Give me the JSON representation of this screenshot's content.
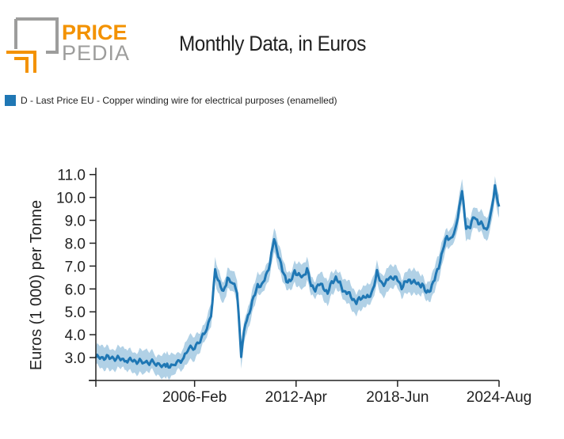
{
  "brand": {
    "line1": "PRICE",
    "line2": "PEDIA",
    "accent": "#f39200",
    "gray": "#9d9d9c"
  },
  "chart_data": {
    "type": "area",
    "title": "Monthly Data, in Euros",
    "xlabel": "",
    "ylabel": "Euros (1 000) per Tonne",
    "legend": {
      "position": "top-left",
      "entries": [
        "D - Last Price EU - Copper winding wire for electrical purposes (enamelled)"
      ]
    },
    "grid": false,
    "x_range": [
      "2000-Feb",
      "2024-Aug"
    ],
    "ylim": [
      2.0,
      11.3
    ],
    "xticks": [
      "2006-Feb",
      "2012-Apr",
      "2018-Jun",
      "2024-Aug"
    ],
    "yticks": [
      "3.0",
      "4.0",
      "5.0",
      "6.0",
      "7.0",
      "8.0",
      "9.0",
      "10.0",
      "11.0"
    ],
    "colors": {
      "line": "#1f77b4",
      "band": "#a9cce3"
    },
    "series": [
      {
        "name": "D - Last Price EU - Copper winding wire for electrical purposes (enamelled)",
        "points": [
          [
            "2000-02",
            3.0
          ],
          [
            "2001-01",
            3.0
          ],
          [
            "2002-01",
            2.9
          ],
          [
            "2003-01",
            2.8
          ],
          [
            "2003-09",
            2.8
          ],
          [
            "2004-01",
            2.6
          ],
          [
            "2004-06",
            2.7
          ],
          [
            "2004-10",
            2.6
          ],
          [
            "2005-02",
            2.8
          ],
          [
            "2005-06",
            3.0
          ],
          [
            "2005-10",
            3.4
          ],
          [
            "2006-02",
            3.5
          ],
          [
            "2006-06",
            3.7
          ],
          [
            "2006-10",
            4.2
          ],
          [
            "2007-02",
            4.8
          ],
          [
            "2007-05",
            6.8
          ],
          [
            "2007-08",
            6.3
          ],
          [
            "2007-11",
            5.8
          ],
          [
            "2008-02",
            6.5
          ],
          [
            "2008-06",
            6.2
          ],
          [
            "2008-09",
            5.9
          ],
          [
            "2008-12",
            3.1
          ],
          [
            "2009-03",
            4.5
          ],
          [
            "2009-06",
            5.0
          ],
          [
            "2009-09",
            5.6
          ],
          [
            "2009-12",
            6.2
          ],
          [
            "2010-03",
            6.1
          ],
          [
            "2010-06",
            6.6
          ],
          [
            "2010-09",
            7.1
          ],
          [
            "2010-12",
            8.2
          ],
          [
            "2011-03",
            7.5
          ],
          [
            "2011-06",
            6.8
          ],
          [
            "2011-09",
            6.4
          ],
          [
            "2011-12",
            6.3
          ],
          [
            "2012-03",
            6.8
          ],
          [
            "2012-06",
            6.6
          ],
          [
            "2012-09",
            6.5
          ],
          [
            "2012-12",
            6.9
          ],
          [
            "2013-03",
            6.1
          ],
          [
            "2013-06",
            6.0
          ],
          [
            "2013-09",
            6.2
          ],
          [
            "2013-12",
            6.1
          ],
          [
            "2014-03",
            5.8
          ],
          [
            "2014-06",
            6.3
          ],
          [
            "2014-09",
            6.5
          ],
          [
            "2014-12",
            6.2
          ],
          [
            "2015-03",
            5.9
          ],
          [
            "2015-06",
            5.8
          ],
          [
            "2015-09",
            5.6
          ],
          [
            "2015-12",
            5.4
          ],
          [
            "2016-03",
            5.6
          ],
          [
            "2016-06",
            5.7
          ],
          [
            "2016-09",
            5.6
          ],
          [
            "2016-12",
            6.0
          ],
          [
            "2017-03",
            6.7
          ],
          [
            "2017-06",
            6.3
          ],
          [
            "2017-09",
            6.2
          ],
          [
            "2017-12",
            6.5
          ],
          [
            "2018-03",
            6.5
          ],
          [
            "2018-06",
            6.4
          ],
          [
            "2018-09",
            6.1
          ],
          [
            "2018-12",
            6.3
          ],
          [
            "2019-03",
            6.4
          ],
          [
            "2019-06",
            6.3
          ],
          [
            "2019-09",
            6.2
          ],
          [
            "2019-12",
            6.2
          ],
          [
            "2020-03",
            5.8
          ],
          [
            "2020-06",
            6.0
          ],
          [
            "2020-09",
            6.4
          ],
          [
            "2020-12",
            7.0
          ],
          [
            "2021-03",
            7.7
          ],
          [
            "2021-06",
            8.3
          ],
          [
            "2021-09",
            8.2
          ],
          [
            "2021-12",
            8.5
          ],
          [
            "2022-03",
            9.6
          ],
          [
            "2022-05",
            10.2
          ],
          [
            "2022-08",
            8.7
          ],
          [
            "2022-11",
            8.7
          ],
          [
            "2023-02",
            9.2
          ],
          [
            "2023-05",
            8.9
          ],
          [
            "2023-08",
            8.8
          ],
          [
            "2023-11",
            8.6
          ],
          [
            "2024-02",
            9.2
          ],
          [
            "2024-05",
            10.5
          ],
          [
            "2024-08",
            9.6
          ]
        ],
        "band_halfwidth": 0.55
      }
    ]
  }
}
